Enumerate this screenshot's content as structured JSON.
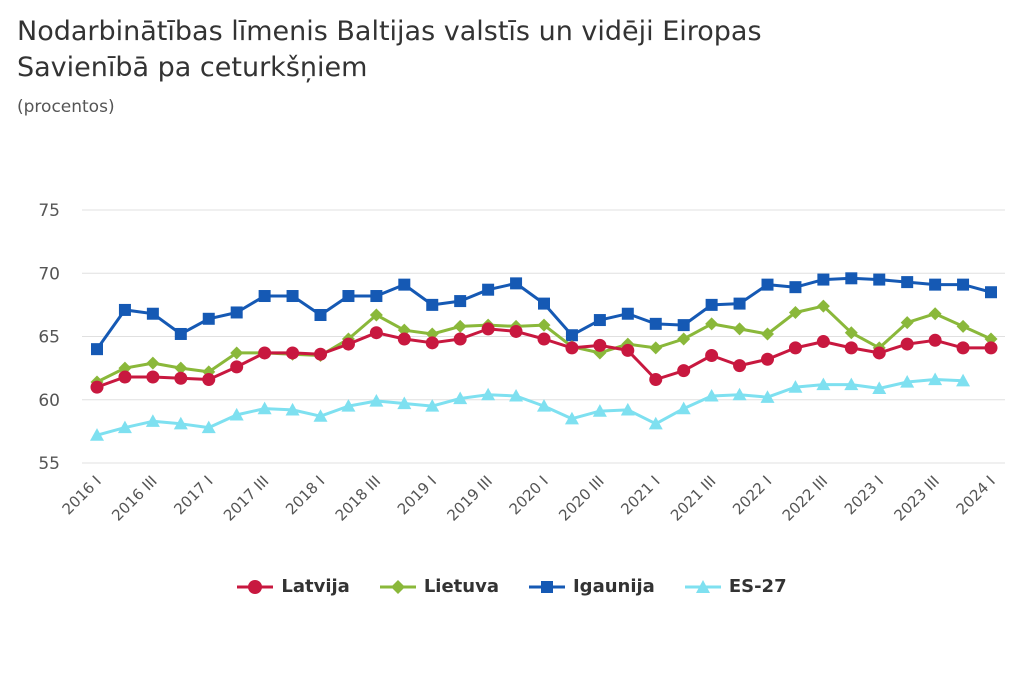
{
  "title": "Nodarbinātības līmenis Baltijas valstīs un vidēji Eiropas Savienībā pa ceturkšņiem",
  "subtitle": "(procentos)",
  "chart_data": {
    "type": "line",
    "title": "Nodarbinātības līmenis Baltijas valstīs un vidēji Eiropas Savienībā pa ceturkšņiem",
    "subtitle": "(procentos)",
    "xlabel": "",
    "ylabel": "",
    "ylim": [
      55,
      75
    ],
    "yticks": [
      55,
      60,
      65,
      70,
      75
    ],
    "grid": true,
    "legend_position": "bottom",
    "x_tick_labels": [
      "2016 I",
      "2016 III",
      "2017 I",
      "2017 III",
      "2018 I",
      "2018 III",
      "2019 I",
      "2019 III",
      "2020 I",
      "2020 III",
      "2021 I",
      "2021 III",
      "2022 I",
      "2022 III",
      "2023 I",
      "2023 III",
      "2024 I"
    ],
    "categories": [
      "2016 I",
      "2016 II",
      "2016 III",
      "2016 IV",
      "2017 I",
      "2017 II",
      "2017 III",
      "2017 IV",
      "2018 I",
      "2018 II",
      "2018 III",
      "2018 IV",
      "2019 I",
      "2019 II",
      "2019 III",
      "2019 IV",
      "2020 I",
      "2020 II",
      "2020 III",
      "2020 IV",
      "2021 I",
      "2021 II",
      "2021 III",
      "2021 IV",
      "2022 I",
      "2022 II",
      "2022 III",
      "2022 IV",
      "2023 I",
      "2023 II",
      "2023 III",
      "2023 IV",
      "2024 I"
    ],
    "series": [
      {
        "name": "Latvija",
        "color": "#c8183f",
        "marker": "circle",
        "values": [
          61.0,
          61.8,
          61.8,
          61.7,
          61.6,
          62.6,
          63.7,
          63.7,
          63.6,
          64.4,
          65.3,
          64.8,
          64.5,
          64.8,
          65.6,
          65.4,
          64.8,
          64.1,
          64.3,
          63.9,
          61.6,
          62.3,
          63.5,
          62.7,
          63.2,
          64.1,
          64.6,
          64.1,
          63.7,
          64.4,
          64.7,
          64.1,
          64.1
        ]
      },
      {
        "name": "Lietuva",
        "color": "#8ab83a",
        "marker": "diamond",
        "values": [
          61.4,
          62.5,
          62.9,
          62.5,
          62.2,
          63.7,
          63.7,
          63.6,
          63.5,
          64.8,
          66.7,
          65.5,
          65.2,
          65.8,
          65.9,
          65.8,
          65.9,
          64.2,
          63.7,
          64.4,
          64.1,
          64.8,
          66.0,
          65.6,
          65.2,
          66.9,
          67.4,
          65.3,
          64.1,
          66.1,
          66.8,
          65.8,
          64.8
        ]
      },
      {
        "name": "Igaunija",
        "color": "#1559b4",
        "marker": "square",
        "values": [
          64.0,
          67.1,
          66.8,
          65.2,
          66.4,
          66.9,
          68.2,
          68.2,
          66.7,
          68.2,
          68.2,
          69.1,
          67.5,
          67.8,
          68.7,
          69.2,
          67.6,
          65.1,
          66.3,
          66.8,
          66.0,
          65.9,
          67.5,
          67.6,
          69.1,
          68.9,
          69.5,
          69.6,
          69.5,
          69.3,
          69.1,
          69.1,
          68.5
        ]
      },
      {
        "name": "ES-27",
        "color": "#7ee0f0",
        "marker": "triangle",
        "values": [
          57.2,
          57.8,
          58.3,
          58.1,
          57.8,
          58.8,
          59.3,
          59.2,
          58.7,
          59.5,
          59.9,
          59.7,
          59.5,
          60.1,
          60.4,
          60.3,
          59.5,
          58.5,
          59.1,
          59.2,
          58.1,
          59.3,
          60.3,
          60.4,
          60.2,
          61.0,
          61.2,
          61.2,
          60.9,
          61.4,
          61.6,
          61.5,
          null
        ]
      }
    ]
  }
}
